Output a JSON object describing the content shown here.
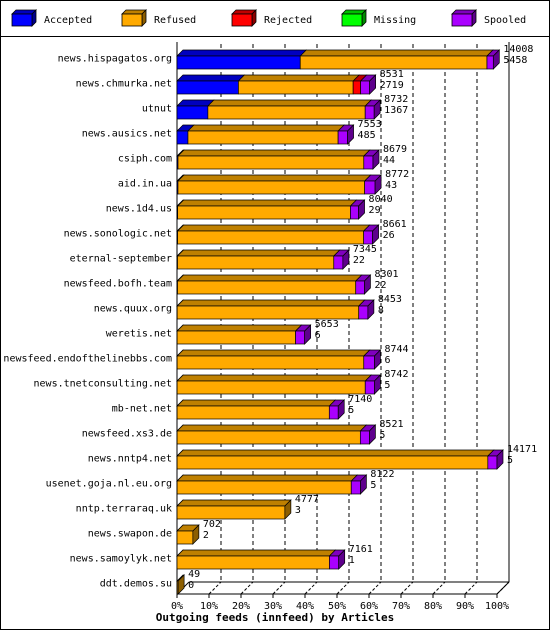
{
  "chart_data": {
    "type": "bar",
    "orientation": "horizontal",
    "stacked": true,
    "three_d": true,
    "title": "Outgoing feeds (innfeed) by Articles",
    "legend_position": "top",
    "xlim": [
      0,
      100
    ],
    "x_ticks": [
      "0%",
      "10%",
      "20%",
      "30%",
      "40%",
      "50%",
      "60%",
      "70%",
      "80%",
      "90%",
      "100%"
    ],
    "grid": true,
    "series": [
      {
        "name": "Accepted",
        "color": "#0000ff"
      },
      {
        "name": "Refused",
        "color": "#ffaa00"
      },
      {
        "name": "Rejected",
        "color": "#ff0000"
      },
      {
        "name": "Missing",
        "color": "#00ff00"
      },
      {
        "name": "Spooled",
        "color": "#aa00ff"
      }
    ],
    "feeds": [
      {
        "name": "news.hispagatos.org",
        "offered": "14008",
        "accepted": "5458",
        "parts": [
          5458,
          8269,
          0,
          0,
          281
        ]
      },
      {
        "name": "news.chmurka.net",
        "offered": "8531",
        "accepted": "2719",
        "parts": [
          2719,
          5082,
          330,
          0,
          400
        ]
      },
      {
        "name": "utnut",
        "offered": "8732",
        "accepted": "1367",
        "parts": [
          1367,
          6967,
          0,
          0,
          398
        ]
      },
      {
        "name": "news.ausics.net",
        "offered": "7553",
        "accepted": "485",
        "parts": [
          485,
          6650,
          0,
          0,
          418
        ]
      },
      {
        "name": "csiph.com",
        "offered": "8679",
        "accepted": "44",
        "parts": [
          44,
          8228,
          0,
          0,
          407
        ]
      },
      {
        "name": "aid.in.ua",
        "offered": "8772",
        "accepted": "43",
        "parts": [
          43,
          8267,
          0,
          0,
          462
        ]
      },
      {
        "name": "news.1d4.us",
        "offered": "8040",
        "accepted": "29",
        "parts": [
          29,
          7652,
          0,
          0,
          359
        ]
      },
      {
        "name": "news.sonologic.net",
        "offered": "8661",
        "accepted": "26",
        "parts": [
          26,
          8240,
          0,
          0,
          395
        ]
      },
      {
        "name": "eternal-september",
        "offered": "7345",
        "accepted": "22",
        "parts": [
          22,
          6921,
          0,
          0,
          402
        ]
      },
      {
        "name": "newsfeed.bofh.team",
        "offered": "8301",
        "accepted": "22",
        "parts": [
          22,
          7893,
          0,
          0,
          386
        ]
      },
      {
        "name": "news.quux.org",
        "offered": "8453",
        "accepted": "8",
        "parts": [
          8,
          8040,
          0,
          0,
          405
        ]
      },
      {
        "name": "weretis.net",
        "offered": "5653",
        "accepted": "6",
        "parts": [
          6,
          5244,
          0,
          0,
          403
        ]
      },
      {
        "name": "newsfeed.endofthelinebbs.com",
        "offered": "8744",
        "accepted": "6",
        "parts": [
          6,
          8265,
          0,
          0,
          473
        ]
      },
      {
        "name": "news.tnetconsulting.net",
        "offered": "8742",
        "accepted": "5",
        "parts": [
          5,
          8331,
          0,
          0,
          406
        ]
      },
      {
        "name": "mb-net.net",
        "offered": "7140",
        "accepted": "5",
        "parts": [
          5,
          6740,
          0,
          0,
          395
        ]
      },
      {
        "name": "newsfeed.xs3.de",
        "offered": "8521",
        "accepted": "5",
        "parts": [
          5,
          8114,
          0,
          0,
          402
        ]
      },
      {
        "name": "news.nntp4.net",
        "offered": "14171",
        "accepted": "5",
        "parts": [
          5,
          13760,
          0,
          0,
          406
        ]
      },
      {
        "name": "usenet.goja.nl.eu.org",
        "offered": "8122",
        "accepted": "5",
        "parts": [
          5,
          7712,
          0,
          0,
          405
        ]
      },
      {
        "name": "nntp.terraraq.uk",
        "offered": "4777",
        "accepted": "3",
        "parts": [
          3,
          4774,
          0,
          0,
          0
        ]
      },
      {
        "name": "news.swapon.de",
        "offered": "702",
        "accepted": "2",
        "parts": [
          2,
          700,
          0,
          0,
          0
        ]
      },
      {
        "name": "news.samoylyk.net",
        "offered": "7161",
        "accepted": "1",
        "parts": [
          1,
          6749,
          0,
          0,
          411
        ]
      },
      {
        "name": "ddt.demos.su",
        "offered": "49",
        "accepted": "0",
        "parts": [
          0,
          49,
          0,
          0,
          0
        ]
      }
    ]
  }
}
